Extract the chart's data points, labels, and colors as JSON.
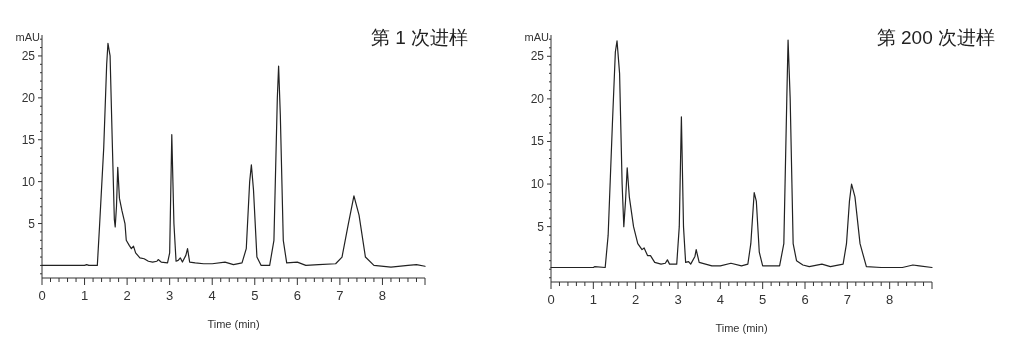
{
  "chart_data": [
    {
      "type": "line",
      "title": "第 1 次进样",
      "xlabel": "Time (min)",
      "ylabel": "mAU",
      "xlim": [
        0,
        9
      ],
      "ylim": [
        -1.5,
        27.5
      ],
      "grid": false,
      "marker": "none",
      "line_style": "solid",
      "xticks": [
        0,
        {
          "value": 0.2,
          "label": null
        },
        {
          "value": 0.4,
          "label": null
        },
        {
          "value": 0.6,
          "label": null
        },
        {
          "value": 0.8,
          "label": null
        },
        1,
        {
          "value": 1.2,
          "label": null
        },
        {
          "value": 1.4,
          "label": null
        },
        {
          "value": 1.6,
          "label": null
        },
        {
          "value": 1.8,
          "label": null
        },
        2,
        {
          "value": 2.2,
          "label": null
        },
        {
          "value": 2.4,
          "label": null
        },
        {
          "value": 2.6,
          "label": null
        },
        {
          "value": 2.8,
          "label": null
        },
        3,
        {
          "value": 3.2,
          "label": null
        },
        {
          "value": 3.4,
          "label": null
        },
        {
          "value": 3.6,
          "label": null
        },
        {
          "value": 3.8,
          "label": null
        },
        4,
        {
          "value": 4.2,
          "label": null
        },
        {
          "value": 4.4,
          "label": null
        },
        {
          "value": 4.6,
          "label": null
        },
        {
          "value": 4.8,
          "label": null
        },
        5,
        {
          "value": 5.2,
          "label": null
        },
        {
          "value": 5.4,
          "label": null
        },
        {
          "value": 5.6,
          "label": null
        },
        {
          "value": 5.8,
          "label": null
        },
        6,
        {
          "value": 6.2,
          "label": null
        },
        {
          "value": 6.4,
          "label": null
        },
        {
          "value": 6.6,
          "label": null
        },
        {
          "value": 6.8,
          "label": null
        },
        7,
        {
          "value": 7.2,
          "label": null
        },
        {
          "value": 7.4,
          "label": null
        },
        {
          "value": 7.6,
          "label": null
        },
        {
          "value": 7.8,
          "label": null
        },
        8,
        {
          "value": 8.2,
          "label": null
        },
        {
          "value": 8.4,
          "label": null
        },
        {
          "value": 8.6,
          "label": null
        },
        {
          "value": 8.8,
          "label": null
        },
        {
          "value": 9,
          "label": null
        }
      ],
      "yticks": [
        {
          "value": -1,
          "label": null
        },
        {
          "value": 0,
          "label": null
        },
        {
          "value": 1,
          "label": null
        },
        {
          "value": 2,
          "label": null
        },
        {
          "value": 3,
          "label": null
        },
        {
          "value": 4,
          "label": null
        },
        5,
        {
          "value": 6,
          "label": null
        },
        {
          "value": 7,
          "label": null
        },
        {
          "value": 8,
          "label": null
        },
        {
          "value": 9,
          "label": null
        },
        10,
        {
          "value": 11,
          "label": null
        },
        {
          "value": 12,
          "label": null
        },
        {
          "value": 13,
          "label": null
        },
        {
          "value": 14,
          "label": null
        },
        15,
        {
          "value": 16,
          "label": null
        },
        {
          "value": 17,
          "label": null
        },
        {
          "value": 18,
          "label": null
        },
        {
          "value": 19,
          "label": null
        },
        20,
        {
          "value": 21,
          "label": null
        },
        {
          "value": 22,
          "label": null
        },
        {
          "value": 23,
          "label": null
        },
        {
          "value": 24,
          "label": null
        },
        25,
        {
          "value": 26,
          "label": null
        },
        {
          "value": 27,
          "label": null
        }
      ],
      "series": [
        {
          "color": "#222222",
          "x": [
            0,
            1.0,
            1.05,
            1.1,
            1.3,
            1.35,
            1.45,
            1.52,
            1.55,
            1.6,
            1.65,
            1.7,
            1.72,
            1.75,
            1.78,
            1.82,
            1.88,
            1.95,
            1.98,
            2.05,
            2.1,
            2.15,
            2.2,
            2.3,
            2.4,
            2.5,
            2.6,
            2.7,
            2.73,
            2.8,
            2.95,
            3.0,
            3.05,
            3.1,
            3.15,
            3.2,
            3.25,
            3.3,
            3.38,
            3.42,
            3.47,
            3.6,
            3.8,
            4.0,
            4.3,
            4.5,
            4.7,
            4.8,
            4.88,
            4.92,
            4.97,
            5.05,
            5.15,
            5.35,
            5.45,
            5.53,
            5.56,
            5.6,
            5.67,
            5.75,
            6.0,
            6.2,
            6.5,
            6.9,
            7.05,
            7.2,
            7.33,
            7.45,
            7.6,
            7.8,
            8.2,
            8.6,
            8.8,
            9.0
          ],
          "values": [
            0,
            0,
            0.1,
            0,
            0,
            4.5,
            14,
            24,
            26.5,
            25,
            15,
            5.5,
            4.6,
            7,
            11.7,
            8,
            6.5,
            5,
            3,
            2.4,
            2,
            2.3,
            1.5,
            0.9,
            0.8,
            0.5,
            0.4,
            0.5,
            0.7,
            0.4,
            0.3,
            1.5,
            15.6,
            5,
            0.5,
            0.6,
            0.9,
            0.4,
            1.2,
            2,
            0.4,
            0.3,
            0.2,
            0.2,
            0.4,
            0.1,
            0.3,
            2,
            10,
            12,
            9,
            1,
            0,
            0,
            3,
            20,
            23.8,
            18,
            3,
            0.3,
            0.4,
            0,
            0.1,
            0.2,
            1,
            5,
            8.3,
            6,
            1,
            0,
            -0.2,
            0,
            0.1,
            -0.1
          ]
        }
      ]
    },
    {
      "type": "line",
      "title": "第 200 次进样",
      "xlabel": "Time (min)",
      "ylabel": "mAU",
      "xlim": [
        0,
        9
      ],
      "ylim": [
        -1.5,
        27.5
      ],
      "grid": false,
      "marker": "none",
      "line_style": "solid",
      "xticks": [
        0,
        {
          "value": 0.2,
          "label": null
        },
        {
          "value": 0.4,
          "label": null
        },
        {
          "value": 0.6,
          "label": null
        },
        {
          "value": 0.8,
          "label": null
        },
        1,
        {
          "value": 1.2,
          "label": null
        },
        {
          "value": 1.4,
          "label": null
        },
        {
          "value": 1.6,
          "label": null
        },
        {
          "value": 1.8,
          "label": null
        },
        2,
        {
          "value": 2.2,
          "label": null
        },
        {
          "value": 2.4,
          "label": null
        },
        {
          "value": 2.6,
          "label": null
        },
        {
          "value": 2.8,
          "label": null
        },
        3,
        {
          "value": 3.2,
          "label": null
        },
        {
          "value": 3.4,
          "label": null
        },
        {
          "value": 3.6,
          "label": null
        },
        {
          "value": 3.8,
          "label": null
        },
        4,
        {
          "value": 4.2,
          "label": null
        },
        {
          "value": 4.4,
          "label": null
        },
        {
          "value": 4.6,
          "label": null
        },
        {
          "value": 4.8,
          "label": null
        },
        5,
        {
          "value": 5.2,
          "label": null
        },
        {
          "value": 5.4,
          "label": null
        },
        {
          "value": 5.6,
          "label": null
        },
        {
          "value": 5.8,
          "label": null
        },
        6,
        {
          "value": 6.2,
          "label": null
        },
        {
          "value": 6.4,
          "label": null
        },
        {
          "value": 6.6,
          "label": null
        },
        {
          "value": 6.8,
          "label": null
        },
        7,
        {
          "value": 7.2,
          "label": null
        },
        {
          "value": 7.4,
          "label": null
        },
        {
          "value": 7.6,
          "label": null
        },
        {
          "value": 7.8,
          "label": null
        },
        8,
        {
          "value": 8.2,
          "label": null
        },
        {
          "value": 8.4,
          "label": null
        },
        {
          "value": 8.6,
          "label": null
        },
        {
          "value": 8.8,
          "label": null
        },
        {
          "value": 9,
          "label": null
        }
      ],
      "yticks": [
        {
          "value": -1,
          "label": null
        },
        {
          "value": 0,
          "label": null
        },
        {
          "value": 1,
          "label": null
        },
        {
          "value": 2,
          "label": null
        },
        {
          "value": 3,
          "label": null
        },
        {
          "value": 4,
          "label": null
        },
        5,
        {
          "value": 6,
          "label": null
        },
        {
          "value": 7,
          "label": null
        },
        {
          "value": 8,
          "label": null
        },
        {
          "value": 9,
          "label": null
        },
        10,
        {
          "value": 11,
          "label": null
        },
        {
          "value": 12,
          "label": null
        },
        {
          "value": 13,
          "label": null
        },
        {
          "value": 14,
          "label": null
        },
        15,
        {
          "value": 16,
          "label": null
        },
        {
          "value": 17,
          "label": null
        },
        {
          "value": 18,
          "label": null
        },
        {
          "value": 19,
          "label": null
        },
        20,
        {
          "value": 21,
          "label": null
        },
        {
          "value": 22,
          "label": null
        },
        {
          "value": 23,
          "label": null
        },
        {
          "value": 24,
          "label": null
        },
        25,
        {
          "value": 26,
          "label": null
        },
        {
          "value": 27,
          "label": null
        }
      ],
      "series": [
        {
          "color": "#222222",
          "x": [
            0,
            1.0,
            1.03,
            1.28,
            1.35,
            1.45,
            1.52,
            1.56,
            1.62,
            1.68,
            1.72,
            1.76,
            1.8,
            1.85,
            1.95,
            2.05,
            2.15,
            2.2,
            2.28,
            2.35,
            2.45,
            2.6,
            2.7,
            2.75,
            2.8,
            2.97,
            3.03,
            3.08,
            3.13,
            3.18,
            3.25,
            3.3,
            3.4,
            3.43,
            3.5,
            3.65,
            3.8,
            4.0,
            4.25,
            4.5,
            4.65,
            4.72,
            4.8,
            4.85,
            4.92,
            5.0,
            5.4,
            5.5,
            5.57,
            5.6,
            5.65,
            5.72,
            5.8,
            5.95,
            6.1,
            6.4,
            6.6,
            6.9,
            6.98,
            7.05,
            7.1,
            7.18,
            7.3,
            7.45,
            7.8,
            8.3,
            8.55,
            8.7,
            9.0
          ],
          "values": [
            0.2,
            0.2,
            0.3,
            0.2,
            4,
            17,
            25.5,
            26.8,
            23,
            10,
            5,
            8,
            11.9,
            8.5,
            5,
            3,
            2.3,
            2.5,
            1.6,
            1.6,
            0.8,
            0.6,
            0.7,
            1.1,
            0.6,
            0.6,
            5,
            17.9,
            5,
            0.8,
            0.9,
            0.6,
            1.5,
            2.3,
            0.8,
            0.6,
            0.4,
            0.4,
            0.7,
            0.4,
            0.6,
            3,
            9,
            8,
            2,
            0.4,
            0.4,
            3,
            20,
            26.9,
            20,
            3,
            1,
            0.5,
            0.3,
            0.6,
            0.3,
            0.6,
            3,
            8,
            10,
            8.5,
            3,
            0.3,
            0.2,
            0.2,
            0.5,
            0.4,
            0.2
          ]
        }
      ]
    }
  ]
}
